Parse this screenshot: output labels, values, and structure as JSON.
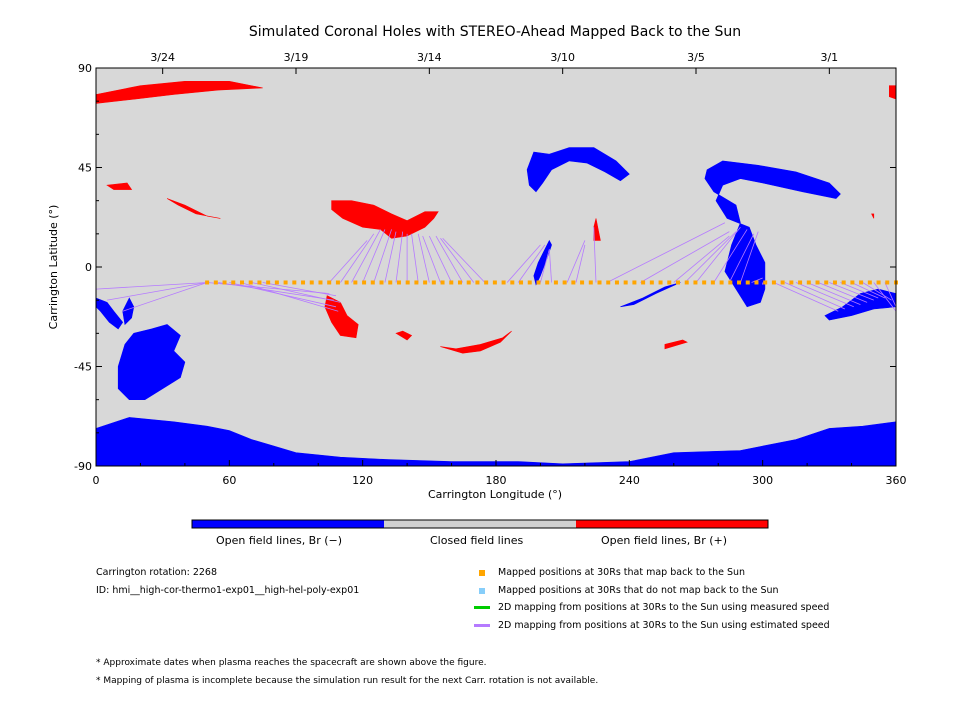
{
  "chart_data": {
    "type": "scatter",
    "title": "Simulated Coronal Holes with STEREO-Ahead Mapped Back to the Sun",
    "xlabel": "Carrington Longitude (°)",
    "ylabel": "Carrington Latitude (°)",
    "xlim": [
      0,
      360
    ],
    "ylim": [
      -90,
      90
    ],
    "x_ticks": [
      "0",
      "60",
      "120",
      "180",
      "240",
      "300",
      "360"
    ],
    "y_ticks": [
      "90",
      "45",
      "0",
      "-45",
      "-90"
    ],
    "date_ticks": [
      {
        "label": "3/24",
        "lon": 30
      },
      {
        "label": "3/19",
        "lon": 90
      },
      {
        "label": "3/14",
        "lon": 150
      },
      {
        "label": "3/10",
        "lon": 210
      },
      {
        "label": "3/5",
        "lon": 270
      },
      {
        "label": "3/1",
        "lon": 330
      }
    ],
    "background_color": "#d8d8d8",
    "colors": {
      "neg": "#0000ff",
      "pos": "#ff0000",
      "closed": "#d0d0d0",
      "mapped_back": "#ffa500",
      "not_mapped": "#87cefa",
      "measured_speed": "#00cc00",
      "estimated_speed": "#b57aff"
    },
    "mapped_positions": {
      "lon_start": 50,
      "lon_end": 360,
      "lat": -7,
      "count": 80
    },
    "mapping_lines": [
      [
        50,
        -7,
        0,
        -10
      ],
      [
        50,
        -7,
        5,
        -15
      ],
      [
        50,
        -7,
        12,
        -20
      ],
      [
        50,
        -7,
        105,
        -12
      ],
      [
        55,
        -7,
        107,
        -15
      ],
      [
        60,
        -7,
        108,
        -18
      ],
      [
        65,
        -7,
        109,
        -20
      ],
      [
        70,
        -7,
        110,
        -16
      ],
      [
        75,
        -7,
        108,
        -13
      ],
      [
        105,
        -7,
        122,
        12
      ],
      [
        110,
        -7,
        125,
        15
      ],
      [
        115,
        -7,
        128,
        17
      ],
      [
        120,
        -7,
        130,
        17
      ],
      [
        125,
        -7,
        133,
        17
      ],
      [
        130,
        -7,
        135,
        16
      ],
      [
        135,
        -7,
        138,
        16
      ],
      [
        140,
        -7,
        140,
        15
      ],
      [
        145,
        -7,
        142,
        15
      ],
      [
        150,
        -7,
        145,
        15
      ],
      [
        155,
        -7,
        147,
        14
      ],
      [
        160,
        -7,
        150,
        14
      ],
      [
        165,
        -7,
        153,
        14
      ],
      [
        170,
        -7,
        155,
        13
      ],
      [
        175,
        -7,
        156,
        13
      ],
      [
        185,
        -7,
        200,
        10
      ],
      [
        190,
        -7,
        202,
        10
      ],
      [
        200,
        -7,
        204,
        8
      ],
      [
        205,
        -7,
        204,
        8
      ],
      [
        212,
        -7,
        220,
        12
      ],
      [
        216,
        -7,
        220,
        10
      ],
      [
        225,
        -7,
        224,
        18
      ],
      [
        230,
        -7,
        283,
        20
      ],
      [
        245,
        -7,
        285,
        16
      ],
      [
        260,
        -7,
        285,
        14
      ],
      [
        265,
        -7,
        288,
        16
      ],
      [
        270,
        -7,
        290,
        18
      ],
      [
        278,
        -7,
        293,
        17
      ],
      [
        285,
        -7,
        296,
        15
      ],
      [
        290,
        -7,
        298,
        16
      ],
      [
        295,
        -7,
        300,
        -5
      ],
      [
        300,
        -7,
        300,
        -8
      ],
      [
        305,
        -7,
        334,
        -20
      ],
      [
        310,
        -7,
        337,
        -19
      ],
      [
        315,
        -7,
        341,
        -18
      ],
      [
        320,
        -7,
        344,
        -17
      ],
      [
        325,
        -7,
        347,
        -16
      ],
      [
        330,
        -7,
        350,
        -15
      ],
      [
        335,
        -7,
        352,
        -14
      ],
      [
        340,
        -7,
        355,
        -14
      ],
      [
        345,
        -7,
        358,
        -15
      ],
      [
        350,
        -7,
        360,
        -20
      ],
      [
        355,
        -7,
        360,
        -18
      ]
    ],
    "regions_neg": [
      [
        [
          0,
          -73
        ],
        [
          15,
          -68
        ],
        [
          35,
          -70
        ],
        [
          50,
          -72
        ],
        [
          60,
          -74
        ],
        [
          70,
          -78
        ],
        [
          80,
          -81
        ],
        [
          90,
          -84
        ],
        [
          100,
          -85
        ],
        [
          110,
          -86
        ],
        [
          130,
          -87
        ],
        [
          160,
          -88
        ],
        [
          190,
          -88
        ],
        [
          210,
          -89
        ],
        [
          240,
          -88
        ],
        [
          260,
          -84
        ],
        [
          290,
          -83
        ],
        [
          315,
          -78
        ],
        [
          330,
          -73
        ],
        [
          345,
          -72
        ],
        [
          360,
          -70
        ],
        [
          360,
          -90
        ],
        [
          0,
          -90
        ]
      ],
      [
        [
          10,
          -45
        ],
        [
          13,
          -35
        ],
        [
          17,
          -30
        ],
        [
          25,
          -28
        ],
        [
          32,
          -26
        ],
        [
          38,
          -31
        ],
        [
          35,
          -38
        ],
        [
          40,
          -43
        ],
        [
          38,
          -50
        ],
        [
          30,
          -55
        ],
        [
          22,
          -60
        ],
        [
          15,
          -60
        ],
        [
          10,
          -55
        ]
      ],
      [
        [
          0,
          -14
        ],
        [
          5,
          -16
        ],
        [
          8,
          -20
        ],
        [
          12,
          -25
        ],
        [
          10,
          -28
        ],
        [
          6,
          -25
        ],
        [
          2,
          -20
        ],
        [
          0,
          -18
        ]
      ],
      [
        [
          15,
          -14
        ],
        [
          17,
          -18
        ],
        [
          16,
          -23
        ],
        [
          13,
          -26
        ],
        [
          12,
          -20
        ]
      ],
      [
        [
          197,
          52
        ],
        [
          204,
          51
        ],
        [
          213,
          54
        ],
        [
          224,
          54
        ],
        [
          234,
          48
        ],
        [
          240,
          42
        ],
        [
          236,
          39
        ],
        [
          229,
          43
        ],
        [
          221,
          47
        ],
        [
          213,
          48
        ],
        [
          205,
          44
        ],
        [
          201,
          38
        ],
        [
          198,
          34
        ],
        [
          195,
          37
        ],
        [
          194,
          44
        ]
      ],
      [
        [
          275,
          44
        ],
        [
          282,
          48
        ],
        [
          298,
          46
        ],
        [
          315,
          43
        ],
        [
          330,
          38
        ],
        [
          335,
          33
        ],
        [
          333,
          31
        ],
        [
          318,
          34
        ],
        [
          300,
          38
        ],
        [
          290,
          40
        ],
        [
          282,
          37
        ],
        [
          279,
          30
        ],
        [
          284,
          22
        ],
        [
          294,
          18
        ],
        [
          297,
          10
        ],
        [
          301,
          2
        ],
        [
          301,
          -10
        ],
        [
          299,
          -16
        ],
        [
          293,
          -18
        ],
        [
          288,
          -10
        ],
        [
          283,
          -2
        ],
        [
          286,
          10
        ],
        [
          290,
          20
        ],
        [
          288,
          28
        ],
        [
          278,
          34
        ],
        [
          274,
          40
        ]
      ],
      [
        [
          328,
          -22
        ],
        [
          336,
          -18
        ],
        [
          344,
          -12
        ],
        [
          352,
          -10
        ],
        [
          360,
          -12
        ],
        [
          360,
          -18
        ],
        [
          350,
          -19
        ],
        [
          340,
          -22
        ],
        [
          330,
          -24
        ]
      ],
      [
        [
          236,
          -18
        ],
        [
          246,
          -14
        ],
        [
          256,
          -9
        ],
        [
          263,
          -7
        ],
        [
          252,
          -12
        ],
        [
          242,
          -17
        ]
      ],
      [
        [
          197,
          -4
        ],
        [
          199,
          2
        ],
        [
          202,
          8
        ],
        [
          204,
          12
        ],
        [
          205,
          10
        ],
        [
          203,
          4
        ],
        [
          200,
          -4
        ],
        [
          198,
          -8
        ]
      ]
    ],
    "regions_pos": [
      [
        [
          0,
          78
        ],
        [
          20,
          82
        ],
        [
          40,
          84
        ],
        [
          60,
          84
        ],
        [
          75,
          81
        ],
        [
          55,
          80
        ],
        [
          35,
          78
        ],
        [
          18,
          76
        ],
        [
          0,
          74
        ]
      ],
      [
        [
          5,
          37
        ],
        [
          14,
          38
        ],
        [
          16,
          35
        ],
        [
          8,
          35
        ]
      ],
      [
        [
          32,
          31
        ],
        [
          40,
          28
        ],
        [
          50,
          23
        ],
        [
          56,
          22
        ],
        [
          45,
          24
        ],
        [
          37,
          28
        ]
      ],
      [
        [
          106,
          30
        ],
        [
          115,
          30
        ],
        [
          125,
          28
        ],
        [
          133,
          24
        ],
        [
          140,
          21
        ],
        [
          148,
          25
        ],
        [
          154,
          25
        ],
        [
          152,
          22
        ],
        [
          148,
          18
        ],
        [
          140,
          14
        ],
        [
          133,
          13
        ],
        [
          128,
          17
        ],
        [
          120,
          18
        ],
        [
          111,
          22
        ],
        [
          106,
          26
        ]
      ],
      [
        [
          104,
          -13
        ],
        [
          110,
          -16
        ],
        [
          113,
          -22
        ],
        [
          118,
          -26
        ],
        [
          117,
          -32
        ],
        [
          110,
          -31
        ],
        [
          106,
          -25
        ],
        [
          103,
          -18
        ]
      ],
      [
        [
          155,
          -36
        ],
        [
          165,
          -39
        ],
        [
          173,
          -38
        ],
        [
          182,
          -34
        ],
        [
          187,
          -29
        ],
        [
          183,
          -32
        ],
        [
          173,
          -35
        ],
        [
          162,
          -37
        ]
      ],
      [
        [
          135,
          -30
        ],
        [
          140,
          -33
        ],
        [
          142,
          -31
        ],
        [
          138,
          -29
        ]
      ],
      [
        [
          225,
          22
        ],
        [
          227,
          12
        ],
        [
          224,
          12
        ],
        [
          224,
          18
        ]
      ],
      [
        [
          256,
          -37
        ],
        [
          266,
          -34
        ],
        [
          264,
          -33
        ],
        [
          256,
          -35
        ]
      ],
      [
        [
          357,
          82
        ],
        [
          360,
          82
        ],
        [
          360,
          76
        ],
        [
          357,
          77
        ]
      ],
      [
        [
          349,
          24
        ],
        [
          350,
          24
        ],
        [
          350,
          22
        ]
      ]
    ]
  },
  "colorbar": {
    "labels": [
      "Open field lines, Br (−)",
      "Closed field lines",
      "Open field lines, Br (+)"
    ]
  },
  "info": {
    "rotation": "Carrington rotation: 2268",
    "run_id": "ID: hmi__high-cor-thermo1-exp01__high-hel-poly-exp01"
  },
  "legend_items": [
    {
      "label": "Mapped positions at 30Rs that map back to the Sun",
      "kind": "square",
      "color": "#ffa500"
    },
    {
      "label": "Mapped positions at 30Rs that do not map back to the Sun",
      "kind": "square",
      "color": "#87cefa"
    },
    {
      "label": "2D mapping from positions at 30Rs to the Sun using measured speed",
      "kind": "line",
      "color": "#00cc00"
    },
    {
      "label": "2D mapping from positions at 30Rs to the Sun using estimated speed",
      "kind": "line",
      "color": "#b57aff"
    }
  ],
  "footnotes": [
    "* Approximate dates when plasma reaches the spacecraft are shown above the figure.",
    "* Mapping of plasma is incomplete because the simulation run result for the next Carr. rotation is not available."
  ]
}
